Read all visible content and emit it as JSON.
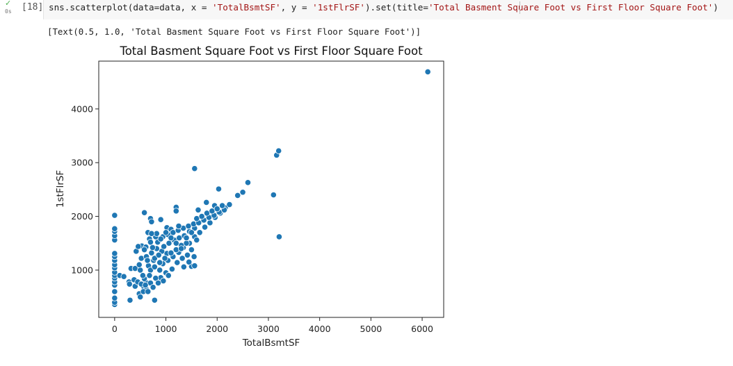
{
  "cell": {
    "status_icon": "check-icon",
    "run_time": "0s",
    "execution_count": "[18]",
    "code": {
      "t1": "sns.scatterplot(data=data, x = ",
      "t2": "'TotalBsmtSF'",
      "t3": ", y = ",
      "t4": "'1stFlrSF'",
      "t5": ").set(title=",
      "t6": "'Total Basment Square Foot vs First Floor Square Foot'",
      "t7": ")"
    },
    "output_text": "[Text(0.5, 1.0, 'Total Basment Square Foot vs First Floor Square Foot')]"
  },
  "colors": {
    "marker": "#1f77b4",
    "marker_edge": "#ffffff",
    "string": "#a31515"
  },
  "chart_data": {
    "type": "scatter",
    "title": "Total Basment Square Foot vs First Floor Square Foot",
    "xlabel": "TotalBsmtSF",
    "ylabel": "1stFlrSF",
    "xlim": [
      -310,
      6420
    ],
    "ylim": [
      120,
      4890
    ],
    "xticks": [
      0,
      1000,
      2000,
      3000,
      4000,
      5000,
      6000
    ],
    "yticks": [
      1000,
      2000,
      3000,
      4000
    ],
    "series": [
      {
        "name": "data",
        "points": [
          [
            0,
            360
          ],
          [
            0,
            400
          ],
          [
            0,
            480
          ],
          [
            0,
            600
          ],
          [
            0,
            720
          ],
          [
            0,
            780
          ],
          [
            0,
            850
          ],
          [
            0,
            900
          ],
          [
            0,
            960
          ],
          [
            0,
            1040
          ],
          [
            0,
            1100
          ],
          [
            0,
            1180
          ],
          [
            0,
            1250
          ],
          [
            0,
            1310
          ],
          [
            0,
            1560
          ],
          [
            0,
            1640
          ],
          [
            0,
            1720
          ],
          [
            0,
            1770
          ],
          [
            0,
            2020
          ],
          [
            100,
            900
          ],
          [
            180,
            880
          ],
          [
            280,
            780
          ],
          [
            290,
            740
          ],
          [
            300,
            440
          ],
          [
            320,
            1030
          ],
          [
            380,
            820
          ],
          [
            400,
            1030
          ],
          [
            400,
            700
          ],
          [
            420,
            1350
          ],
          [
            450,
            780
          ],
          [
            480,
            560
          ],
          [
            500,
            500
          ],
          [
            520,
            1220
          ],
          [
            530,
            1450
          ],
          [
            560,
            700
          ],
          [
            580,
            2070
          ],
          [
            600,
            780
          ],
          [
            610,
            1430
          ],
          [
            620,
            1250
          ],
          [
            650,
            1700
          ],
          [
            680,
            1580
          ],
          [
            700,
            1960
          ],
          [
            720,
            1900
          ],
          [
            900,
            1940
          ],
          [
            780,
            440
          ],
          [
            1020,
            1790
          ],
          [
            1100,
            1760
          ],
          [
            1200,
            2170
          ],
          [
            1200,
            2100
          ],
          [
            1560,
            2890
          ],
          [
            1630,
            2120
          ],
          [
            1790,
            2260
          ],
          [
            1950,
            2200
          ],
          [
            2030,
            2510
          ],
          [
            2600,
            2630
          ],
          [
            2500,
            2450
          ],
          [
            2400,
            2390
          ],
          [
            3100,
            2400
          ],
          [
            3160,
            3140
          ],
          [
            3200,
            3220
          ],
          [
            3210,
            1620
          ],
          [
            6110,
            4690
          ],
          [
            1500,
            1070
          ],
          [
            1560,
            1080
          ],
          [
            1000,
            950
          ],
          [
            900,
            860
          ],
          [
            800,
            850
          ],
          [
            700,
            760
          ],
          [
            620,
            640
          ],
          [
            560,
            600
          ],
          [
            880,
            1000
          ],
          [
            940,
            1120
          ],
          [
            1040,
            1180
          ],
          [
            1140,
            1250
          ],
          [
            1250,
            1330
          ],
          [
            1340,
            1420
          ],
          [
            1460,
            1500
          ],
          [
            1560,
            1620
          ],
          [
            1660,
            1700
          ],
          [
            1760,
            1800
          ],
          [
            1860,
            1880
          ],
          [
            1960,
            1980
          ],
          [
            2060,
            2060
          ],
          [
            2160,
            2160
          ],
          [
            2240,
            2220
          ],
          [
            1120,
            1020
          ],
          [
            1220,
            1140
          ],
          [
            1320,
            1220
          ],
          [
            1420,
            1280
          ],
          [
            1020,
            1310
          ],
          [
            920,
            1350
          ],
          [
            820,
            1400
          ],
          [
            720,
            1320
          ],
          [
            760,
            1180
          ],
          [
            660,
            1080
          ],
          [
            700,
            1000
          ],
          [
            780,
            1220
          ],
          [
            860,
            1280
          ],
          [
            960,
            1440
          ],
          [
            1060,
            1500
          ],
          [
            1160,
            1560
          ],
          [
            1260,
            1600
          ],
          [
            1360,
            1640
          ],
          [
            1460,
            1720
          ],
          [
            1560,
            1780
          ],
          [
            1600,
            1560
          ],
          [
            1500,
            1380
          ],
          [
            1400,
            1500
          ],
          [
            1300,
            1460
          ],
          [
            1200,
            1380
          ],
          [
            1100,
            1320
          ],
          [
            980,
            1220
          ],
          [
            880,
            1140
          ],
          [
            780,
            1060
          ],
          [
            680,
            900
          ],
          [
            580,
            840
          ],
          [
            520,
            740
          ],
          [
            640,
            1180
          ],
          [
            740,
            1420
          ],
          [
            840,
            1520
          ],
          [
            940,
            1620
          ],
          [
            1040,
            1660
          ],
          [
            1140,
            1700
          ],
          [
            1240,
            1740
          ],
          [
            1340,
            1780
          ],
          [
            1440,
            1820
          ],
          [
            1540,
            1860
          ],
          [
            1640,
            1880
          ],
          [
            1740,
            1930
          ],
          [
            1840,
            1980
          ],
          [
            1940,
            2020
          ],
          [
            2040,
            2080
          ],
          [
            2140,
            2120
          ],
          [
            900,
            1580
          ],
          [
            800,
            1620
          ],
          [
            1000,
            1700
          ],
          [
            1100,
            1600
          ],
          [
            1200,
            1500
          ],
          [
            1300,
            1400
          ],
          [
            1400,
            1600
          ],
          [
            1500,
            1700
          ],
          [
            1250,
            1820
          ],
          [
            1600,
            1960
          ],
          [
            1700,
            2000
          ],
          [
            1800,
            2060
          ],
          [
            1900,
            2100
          ],
          [
            2000,
            2140
          ],
          [
            2100,
            2200
          ],
          [
            1550,
            1250
          ],
          [
            1450,
            1150
          ],
          [
            1350,
            1060
          ],
          [
            1050,
            900
          ],
          [
            950,
            800
          ],
          [
            850,
            760
          ],
          [
            750,
            680
          ],
          [
            650,
            600
          ],
          [
            600,
            720
          ],
          [
            550,
            900
          ],
          [
            500,
            1000
          ],
          [
            480,
            1100
          ],
          [
            580,
            1380
          ],
          [
            460,
            1440
          ],
          [
            700,
            1520
          ],
          [
            820,
            1680
          ],
          [
            720,
            1680
          ]
        ]
      }
    ]
  }
}
